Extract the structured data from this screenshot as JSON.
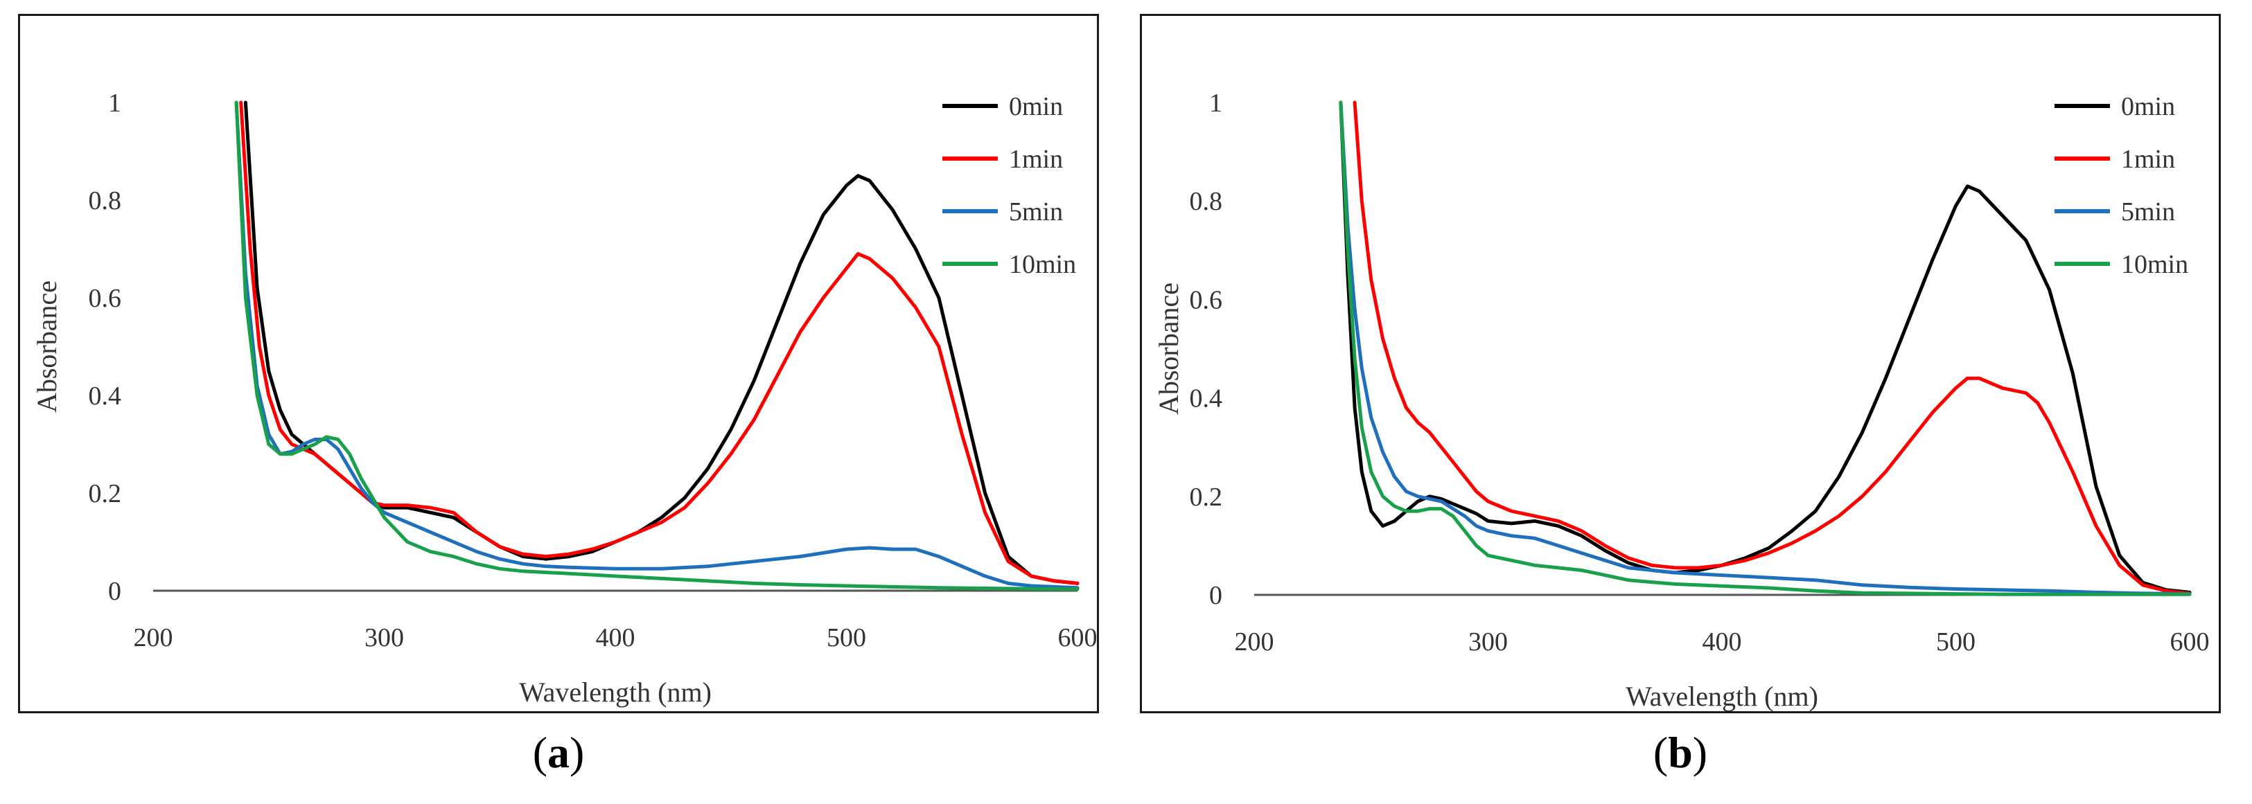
{
  "chart_data": [
    {
      "panel_label": "a",
      "type": "line",
      "title": "",
      "xlabel": "Wavelength (nm)",
      "ylabel": "Absorbance",
      "xlim": [
        200,
        600
      ],
      "ylim": [
        0,
        1
      ],
      "xticks": [
        "200",
        "300",
        "400",
        "500",
        "600"
      ],
      "yticks": [
        "0",
        "0.2",
        "0.4",
        "0.6",
        "0.8",
        "1"
      ],
      "legend_position": "top-right",
      "grid": false,
      "series": [
        {
          "name": "0min",
          "color": "#000000",
          "x": [
            240,
            245,
            250,
            255,
            260,
            265,
            270,
            275,
            280,
            285,
            290,
            295,
            300,
            305,
            310,
            320,
            330,
            340,
            350,
            360,
            370,
            380,
            390,
            400,
            410,
            420,
            430,
            440,
            450,
            460,
            470,
            480,
            490,
            500,
            505,
            510,
            520,
            530,
            540,
            550,
            560,
            570,
            580,
            590,
            600
          ],
          "y": [
            1.0,
            0.62,
            0.45,
            0.37,
            0.32,
            0.3,
            0.28,
            0.26,
            0.24,
            0.22,
            0.2,
            0.18,
            0.17,
            0.17,
            0.17,
            0.16,
            0.15,
            0.12,
            0.09,
            0.07,
            0.065,
            0.07,
            0.08,
            0.1,
            0.12,
            0.15,
            0.19,
            0.25,
            0.33,
            0.43,
            0.55,
            0.67,
            0.77,
            0.83,
            0.85,
            0.84,
            0.78,
            0.7,
            0.6,
            0.4,
            0.2,
            0.07,
            0.03,
            0.02,
            0.015
          ]
        },
        {
          "name": "1min",
          "color": "#ff0000",
          "x": [
            238,
            242,
            246,
            250,
            255,
            260,
            265,
            270,
            275,
            280,
            285,
            290,
            295,
            300,
            305,
            310,
            320,
            330,
            340,
            350,
            360,
            370,
            380,
            390,
            400,
            410,
            420,
            430,
            440,
            450,
            460,
            470,
            480,
            490,
            500,
            505,
            510,
            520,
            530,
            540,
            550,
            560,
            570,
            580,
            590,
            600
          ],
          "y": [
            1.0,
            0.7,
            0.5,
            0.4,
            0.33,
            0.3,
            0.29,
            0.28,
            0.26,
            0.24,
            0.22,
            0.2,
            0.18,
            0.175,
            0.175,
            0.175,
            0.17,
            0.16,
            0.12,
            0.09,
            0.075,
            0.07,
            0.075,
            0.085,
            0.1,
            0.12,
            0.14,
            0.17,
            0.22,
            0.28,
            0.35,
            0.44,
            0.53,
            0.6,
            0.66,
            0.69,
            0.68,
            0.64,
            0.58,
            0.5,
            0.32,
            0.16,
            0.06,
            0.03,
            0.02,
            0.015
          ]
        },
        {
          "name": "5min",
          "color": "#1f6fbf",
          "x": [
            236,
            240,
            245,
            250,
            255,
            260,
            265,
            270,
            275,
            280,
            285,
            290,
            295,
            300,
            310,
            320,
            330,
            340,
            350,
            360,
            370,
            380,
            400,
            420,
            440,
            460,
            480,
            500,
            510,
            520,
            530,
            540,
            550,
            560,
            570,
            580,
            590,
            600
          ],
          "y": [
            1.0,
            0.65,
            0.42,
            0.32,
            0.28,
            0.285,
            0.3,
            0.31,
            0.31,
            0.29,
            0.25,
            0.21,
            0.18,
            0.16,
            0.14,
            0.12,
            0.1,
            0.08,
            0.065,
            0.055,
            0.05,
            0.048,
            0.045,
            0.045,
            0.05,
            0.06,
            0.07,
            0.085,
            0.088,
            0.085,
            0.085,
            0.07,
            0.05,
            0.03,
            0.015,
            0.01,
            0.008,
            0.006
          ]
        },
        {
          "name": "10min",
          "color": "#19a04a",
          "x": [
            236,
            240,
            245,
            250,
            255,
            260,
            265,
            270,
            275,
            280,
            285,
            290,
            295,
            300,
            310,
            320,
            330,
            340,
            350,
            360,
            380,
            400,
            420,
            440,
            460,
            480,
            500,
            520,
            540,
            560,
            580,
            600
          ],
          "y": [
            1.0,
            0.6,
            0.4,
            0.3,
            0.28,
            0.28,
            0.29,
            0.3,
            0.315,
            0.31,
            0.28,
            0.23,
            0.19,
            0.15,
            0.1,
            0.08,
            0.07,
            0.055,
            0.045,
            0.04,
            0.035,
            0.03,
            0.025,
            0.02,
            0.015,
            0.012,
            0.01,
            0.008,
            0.006,
            0.005,
            0.004,
            0.003
          ]
        }
      ]
    },
    {
      "panel_label": "b",
      "type": "line",
      "title": "",
      "xlabel": "Wavelength (nm)",
      "ylabel": "Absorbance",
      "xlim": [
        200,
        600
      ],
      "ylim": [
        0,
        1
      ],
      "xticks": [
        "200",
        "300",
        "400",
        "500",
        "600"
      ],
      "yticks": [
        "0",
        "0.2",
        "0.4",
        "0.6",
        "0.8",
        "1"
      ],
      "legend_position": "top-right",
      "grid": false,
      "series": [
        {
          "name": "0min",
          "color": "#000000",
          "x": [
            237,
            240,
            243,
            246,
            250,
            255,
            260,
            265,
            270,
            275,
            280,
            285,
            290,
            295,
            300,
            310,
            320,
            330,
            340,
            350,
            360,
            370,
            380,
            390,
            400,
            410,
            420,
            430,
            440,
            450,
            460,
            470,
            480,
            490,
            500,
            505,
            510,
            520,
            530,
            540,
            550,
            560,
            570,
            580,
            590,
            600
          ],
          "y": [
            1.0,
            0.65,
            0.38,
            0.25,
            0.17,
            0.14,
            0.15,
            0.17,
            0.19,
            0.2,
            0.195,
            0.185,
            0.175,
            0.165,
            0.15,
            0.145,
            0.15,
            0.14,
            0.12,
            0.09,
            0.065,
            0.05,
            0.045,
            0.05,
            0.06,
            0.075,
            0.095,
            0.13,
            0.17,
            0.24,
            0.33,
            0.44,
            0.56,
            0.68,
            0.79,
            0.83,
            0.82,
            0.77,
            0.72,
            0.62,
            0.45,
            0.22,
            0.08,
            0.025,
            0.01,
            0.005
          ]
        },
        {
          "name": "1min",
          "color": "#ff0000",
          "x": [
            243,
            246,
            250,
            255,
            260,
            265,
            270,
            275,
            280,
            285,
            290,
            295,
            300,
            310,
            320,
            330,
            340,
            350,
            360,
            370,
            380,
            390,
            400,
            410,
            420,
            430,
            440,
            450,
            460,
            470,
            480,
            490,
            500,
            505,
            510,
            520,
            530,
            535,
            540,
            550,
            560,
            570,
            580,
            590,
            600
          ],
          "y": [
            1.0,
            0.8,
            0.64,
            0.52,
            0.44,
            0.38,
            0.35,
            0.33,
            0.3,
            0.27,
            0.24,
            0.21,
            0.19,
            0.17,
            0.16,
            0.15,
            0.13,
            0.1,
            0.075,
            0.06,
            0.055,
            0.055,
            0.06,
            0.07,
            0.085,
            0.105,
            0.13,
            0.16,
            0.2,
            0.25,
            0.31,
            0.37,
            0.42,
            0.44,
            0.44,
            0.42,
            0.41,
            0.39,
            0.35,
            0.25,
            0.14,
            0.06,
            0.02,
            0.008,
            0.003
          ]
        },
        {
          "name": "5min",
          "color": "#1f6fbf",
          "x": [
            237,
            240,
            243,
            246,
            250,
            255,
            260,
            265,
            270,
            275,
            280,
            285,
            290,
            295,
            300,
            310,
            320,
            330,
            340,
            350,
            360,
            380,
            400,
            420,
            440,
            460,
            480,
            500,
            520,
            540,
            560,
            580,
            600
          ],
          "y": [
            1.0,
            0.75,
            0.58,
            0.46,
            0.36,
            0.29,
            0.24,
            0.21,
            0.2,
            0.195,
            0.19,
            0.175,
            0.16,
            0.14,
            0.13,
            0.12,
            0.115,
            0.1,
            0.085,
            0.07,
            0.055,
            0.045,
            0.04,
            0.035,
            0.03,
            0.02,
            0.015,
            0.012,
            0.01,
            0.008,
            0.005,
            0.003,
            0.002
          ]
        },
        {
          "name": "10min",
          "color": "#19a04a",
          "x": [
            237,
            240,
            243,
            246,
            250,
            255,
            260,
            265,
            270,
            275,
            280,
            285,
            290,
            295,
            300,
            310,
            320,
            330,
            340,
            350,
            360,
            380,
            400,
            420,
            440,
            460,
            480,
            500,
            520,
            540,
            560,
            580,
            600
          ],
          "y": [
            1.0,
            0.7,
            0.48,
            0.34,
            0.25,
            0.2,
            0.18,
            0.17,
            0.17,
            0.175,
            0.175,
            0.16,
            0.13,
            0.1,
            0.08,
            0.07,
            0.06,
            0.055,
            0.05,
            0.04,
            0.03,
            0.022,
            0.018,
            0.014,
            0.008,
            0.004,
            0.003,
            0.002,
            0.001,
            0.001,
            0.001,
            0.001,
            0.001
          ]
        }
      ]
    }
  ],
  "captions": [
    {
      "open": "(",
      "label": "a",
      "close": ")"
    },
    {
      "open": "(",
      "label": "b",
      "close": ")"
    }
  ]
}
